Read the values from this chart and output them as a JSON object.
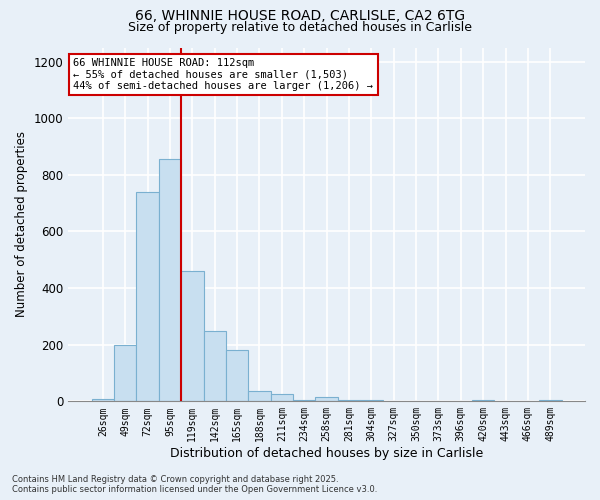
{
  "title_line1": "66, WHINNIE HOUSE ROAD, CARLISLE, CA2 6TG",
  "title_line2": "Size of property relative to detached houses in Carlisle",
  "xlabel": "Distribution of detached houses by size in Carlisle",
  "ylabel": "Number of detached properties",
  "categories": [
    "26sqm",
    "49sqm",
    "72sqm",
    "95sqm",
    "119sqm",
    "142sqm",
    "165sqm",
    "188sqm",
    "211sqm",
    "234sqm",
    "258sqm",
    "281sqm",
    "304sqm",
    "327sqm",
    "350sqm",
    "373sqm",
    "396sqm",
    "420sqm",
    "443sqm",
    "466sqm",
    "489sqm"
  ],
  "values": [
    10,
    200,
    740,
    855,
    460,
    250,
    180,
    35,
    25,
    5,
    15,
    3,
    3,
    2,
    2,
    2,
    2,
    3,
    2,
    2,
    5
  ],
  "bar_color": "#c8dff0",
  "bar_edge_color": "#7ab0d0",
  "vline_color": "#cc0000",
  "vline_pos": 3.5,
  "ylim": [
    0,
    1250
  ],
  "yticks": [
    0,
    200,
    400,
    600,
    800,
    1000,
    1200
  ],
  "annotation_text": "66 WHINNIE HOUSE ROAD: 112sqm\n← 55% of detached houses are smaller (1,503)\n44% of semi-detached houses are larger (1,206) →",
  "annotation_box_color": "#ffffff",
  "annotation_box_edge": "#cc0000",
  "footer_line1": "Contains HM Land Registry data © Crown copyright and database right 2025.",
  "footer_line2": "Contains public sector information licensed under the Open Government Licence v3.0.",
  "bg_color": "#e8f0f8",
  "grid_color": "#ffffff",
  "fig_width": 6.0,
  "fig_height": 5.0
}
